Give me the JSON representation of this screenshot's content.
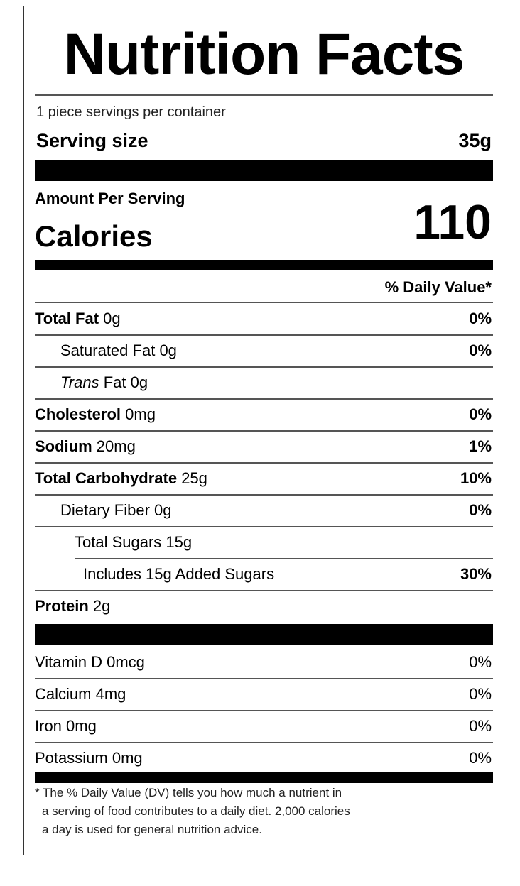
{
  "title": "Nutrition Facts",
  "servings_per_container": "1 piece servings per container",
  "serving_size": {
    "label": "Serving size",
    "value": "35g"
  },
  "amount_per_serving": "Amount Per Serving",
  "calories": {
    "label": "Calories",
    "value": "110"
  },
  "daily_value_header": "% Daily Value*",
  "nutrients": [
    {
      "label": "Total Fat",
      "amount": "0g",
      "dv": "0%",
      "bold": true,
      "indent": 0
    },
    {
      "label": "Saturated Fat",
      "amount": "0g",
      "dv": "0%",
      "bold": false,
      "indent": 1
    },
    {
      "label": "Trans",
      "label_suffix": " Fat",
      "amount": "0g",
      "dv": "",
      "bold": false,
      "indent": 1,
      "italic": true
    },
    {
      "label": "Cholesterol",
      "amount": "0mg",
      "dv": "0%",
      "bold": true,
      "indent": 0
    },
    {
      "label": "Sodium",
      "amount": "20mg",
      "dv": "1%",
      "bold": true,
      "indent": 0
    },
    {
      "label": "Total Carbohydrate",
      "amount": "25g",
      "dv": "10%",
      "bold": true,
      "indent": 0
    },
    {
      "label": "Dietary Fiber",
      "amount": "0g",
      "dv": "0%",
      "bold": false,
      "indent": 1
    },
    {
      "label": "Total Sugars",
      "amount": "15g",
      "dv": "",
      "bold": false,
      "indent": 1
    },
    {
      "label": "Includes 15g Added Sugars",
      "amount": "",
      "dv": "30%",
      "bold": false,
      "indent": 2
    },
    {
      "label": "Protein",
      "amount": "2g",
      "dv": "",
      "bold": true,
      "indent": 0
    }
  ],
  "vitamins": [
    {
      "label": "Vitamin D",
      "amount": "0mcg",
      "dv": "0%"
    },
    {
      "label": "Calcium",
      "amount": "4mg",
      "dv": "0%"
    },
    {
      "label": "Iron",
      "amount": "0mg",
      "dv": "0%"
    },
    {
      "label": "Potassium",
      "amount": "0mg",
      "dv": "0%"
    }
  ],
  "footnote": [
    "* The % Daily Value (DV) tells you how much a nutrient in",
    "a serving of food contributes to a daily diet. 2,000 calories",
    "a day is used for general nutrition advice."
  ]
}
